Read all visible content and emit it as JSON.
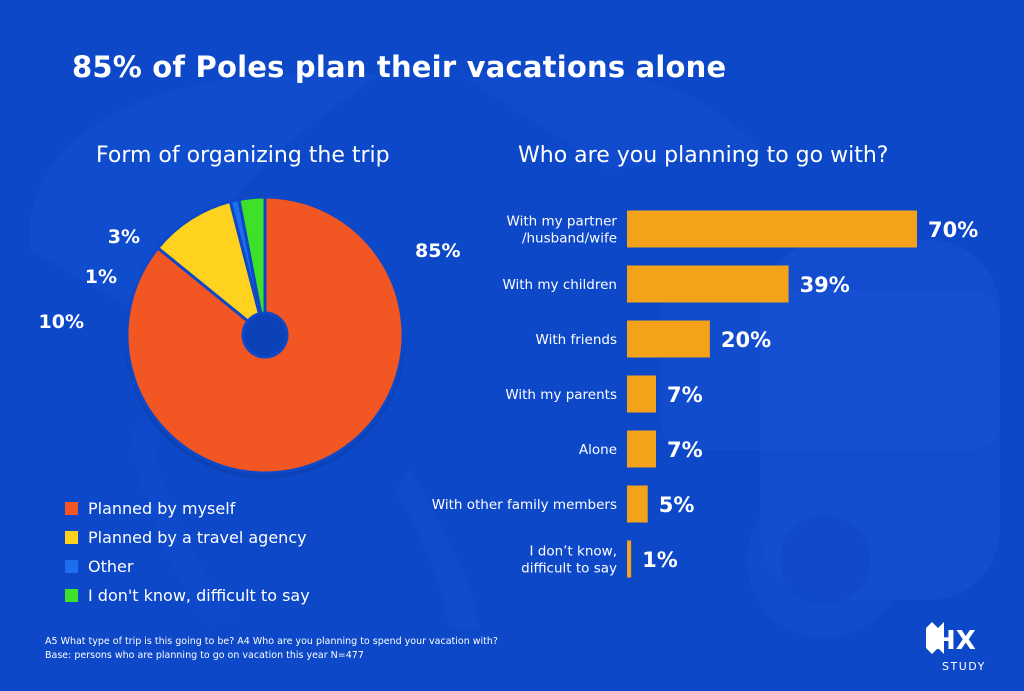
{
  "title": "85% of Poles plan their vacations alone",
  "colors": {
    "background": "#0d48c8",
    "slice_myself": "#f15623",
    "slice_agency": "#ffd21f",
    "slice_other": "#1e6ef0",
    "slice_dont_know": "#3ee02a",
    "bar": "#f5a21b",
    "text": "#ffffff"
  },
  "chart_data": [
    {
      "type": "pie",
      "title": "Form of organizing the trip",
      "slices": [
        {
          "label": "Planned by myself",
          "value": 85,
          "value_label": "85%",
          "color": "#f15623"
        },
        {
          "label": "Planned by a travel agency",
          "value": 10,
          "value_label": "10%",
          "color": "#ffd21f"
        },
        {
          "label": "Other",
          "value": 1,
          "value_label": "1%",
          "color": "#1e6ef0"
        },
        {
          "label": "I don't know, difficult to say",
          "value": 3,
          "value_label": "3%",
          "color": "#3ee02a"
        }
      ],
      "legend_position": "bottom-left"
    },
    {
      "type": "bar",
      "orientation": "horizontal",
      "title": "Who are you planning to go with?",
      "categories": [
        [
          "With my partner",
          "/husband/wife"
        ],
        [
          "With my children"
        ],
        [
          "With friends"
        ],
        [
          "With my parents"
        ],
        [
          "Alone"
        ],
        [
          "With other family members"
        ],
        [
          "I don’t know,",
          "difficult to say"
        ]
      ],
      "values": [
        70,
        39,
        20,
        7,
        7,
        5,
        1
      ],
      "value_labels": [
        "70%",
        "39%",
        "20%",
        "7%",
        "7%",
        "5%",
        "1%"
      ],
      "xlim": [
        0,
        70
      ],
      "color": "#f5a21b",
      "grid": false
    }
  ],
  "footnote": {
    "line1": "A5 What type of trip is this going to be? A4 Who are you planning to spend your vacation with?",
    "line2": "Base: persons who are planning to go on vacation this year N=477"
  },
  "logo": {
    "brand": "HX",
    "sub": "STUDY"
  }
}
